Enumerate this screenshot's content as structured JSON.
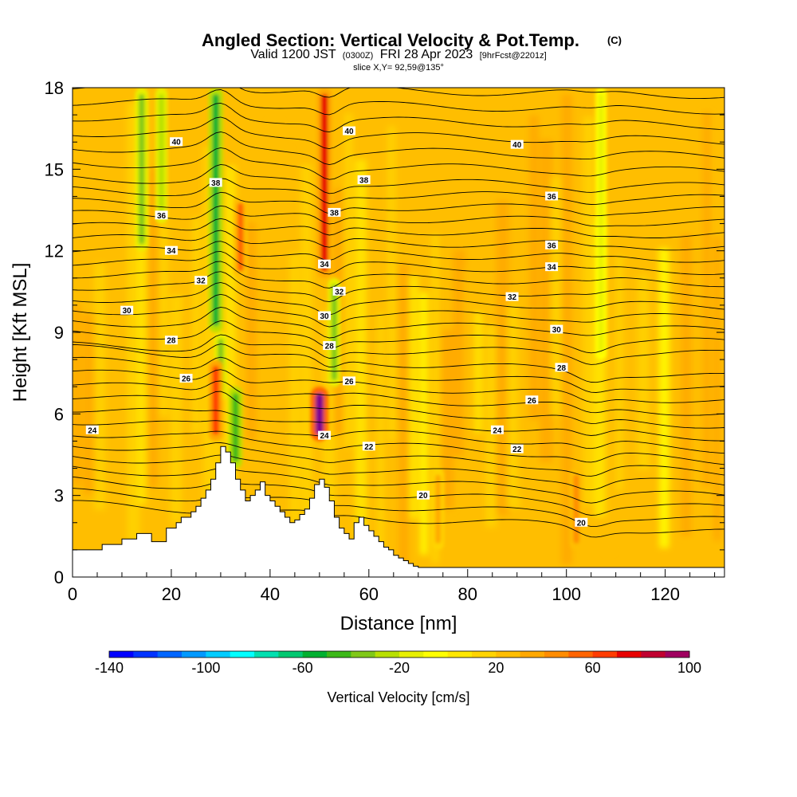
{
  "chart_data": {
    "type": "heatmap",
    "title": "Angled Section: Vertical Velocity & Pot.Temp.",
    "title_suffix": "(C)",
    "subtitle_parts": [
      "Valid 1200 JST",
      "(0300Z)",
      "FRI 28 Apr 2023",
      "[9hrFcst@2201z]"
    ],
    "slice_label": "slice X,Y= 92,59@135°",
    "xlabel": "Distance [nm]",
    "ylabel": "Height [Kft MSL]",
    "xlim": [
      0,
      132
    ],
    "ylim": [
      0,
      18
    ],
    "x_ticks": [
      0,
      20,
      40,
      60,
      80,
      100,
      120
    ],
    "y_ticks": [
      0,
      3,
      6,
      9,
      12,
      15,
      18
    ],
    "colorbar": {
      "label": "Vertical Velocity [cm/s]",
      "min": -140,
      "max": 100,
      "step": 10,
      "tick_values": [
        -140,
        -100,
        -60,
        -20,
        20,
        60,
        100
      ],
      "colors": [
        "#0000ff",
        "#0033ff",
        "#0066ff",
        "#0099ff",
        "#00ccff",
        "#00ffff",
        "#00e0b0",
        "#00c870",
        "#00b030",
        "#3cb818",
        "#80c818",
        "#b8e000",
        "#e8f000",
        "#ffff00",
        "#ffe800",
        "#ffd400",
        "#ffbe00",
        "#ffa800",
        "#ff8c00",
        "#ff6400",
        "#ff3c00",
        "#e80000",
        "#c00030",
        "#a00060",
        "#800090",
        "#6000b0"
      ]
    },
    "theta_contours": [
      {
        "value": 20,
        "labels": [
          [
            71,
            3.0
          ],
          [
            103,
            2.0
          ]
        ]
      },
      {
        "value": 22,
        "labels": [
          [
            60,
            4.8
          ],
          [
            90,
            4.7
          ]
        ]
      },
      {
        "value": 24,
        "labels": [
          [
            4,
            5.4
          ],
          [
            51,
            5.2
          ],
          [
            86,
            5.4
          ]
        ]
      },
      {
        "value": 26,
        "labels": [
          [
            23,
            7.3
          ],
          [
            56,
            7.2
          ],
          [
            93,
            6.5
          ]
        ]
      },
      {
        "value": 28,
        "labels": [
          [
            20,
            8.7
          ],
          [
            52,
            8.5
          ],
          [
            99,
            7.7
          ]
        ]
      },
      {
        "value": 30,
        "labels": [
          [
            11,
            9.8
          ],
          [
            51,
            9.6
          ],
          [
            98,
            9.1
          ]
        ]
      },
      {
        "value": 32,
        "labels": [
          [
            26,
            10.9
          ],
          [
            54,
            10.5
          ],
          [
            89,
            10.3
          ]
        ]
      },
      {
        "value": 34,
        "labels": [
          [
            20,
            12.0
          ],
          [
            51,
            11.5
          ],
          [
            97,
            11.4
          ]
        ]
      },
      {
        "value": 36,
        "labels": [
          [
            18,
            13.3
          ],
          [
            97,
            12.2
          ],
          [
            97,
            14.0
          ]
        ]
      },
      {
        "value": 38,
        "labels": [
          [
            29,
            14.5
          ],
          [
            53,
            13.4
          ],
          [
            59,
            14.6
          ]
        ]
      },
      {
        "value": 40,
        "labels": [
          [
            21,
            16.0
          ],
          [
            56,
            16.4
          ],
          [
            90,
            15.9
          ]
        ]
      }
    ],
    "terrain": {
      "x_nm": [
        0,
        5,
        6,
        9,
        10,
        12,
        13,
        15,
        16,
        18,
        19,
        21,
        22,
        24,
        25,
        26,
        27,
        28,
        29,
        30,
        31,
        32,
        33,
        34,
        35,
        36,
        37,
        38,
        39,
        40,
        41,
        42,
        43,
        44,
        45,
        46,
        47,
        48,
        49,
        50,
        51,
        52,
        53,
        54,
        55,
        56,
        57,
        58,
        59,
        60,
        61,
        62,
        63,
        64,
        65,
        66,
        67,
        68,
        69,
        70,
        71,
        72,
        132
      ],
      "height_kft": [
        1.0,
        1.0,
        1.2,
        1.2,
        1.4,
        1.4,
        1.6,
        1.6,
        1.3,
        1.3,
        1.8,
        2.0,
        2.2,
        2.4,
        2.6,
        2.9,
        3.2,
        3.6,
        4.2,
        4.8,
        4.6,
        4.2,
        3.6,
        3.2,
        2.8,
        3.0,
        3.2,
        3.5,
        3.0,
        2.8,
        2.6,
        2.4,
        2.2,
        2.0,
        2.1,
        2.3,
        2.5,
        2.9,
        3.4,
        3.6,
        3.3,
        2.8,
        2.2,
        1.8,
        1.6,
        1.4,
        2.0,
        2.2,
        1.9,
        1.7,
        1.5,
        1.3,
        1.1,
        1.0,
        0.8,
        0.7,
        0.6,
        0.5,
        0.4,
        0.35,
        0.35,
        0.35,
        0.35
      ]
    },
    "velocity_features": [
      {
        "x_nm": 14,
        "h_range": [
          12,
          18
        ],
        "w_cms": -40
      },
      {
        "x_nm": 18,
        "h_range": [
          13,
          18
        ],
        "w_cms": -30
      },
      {
        "x_nm": 29,
        "h_range": [
          9,
          18
        ],
        "w_cms": -60
      },
      {
        "x_nm": 30,
        "h_range": [
          6.5,
          9
        ],
        "w_cms": -40
      },
      {
        "x_nm": 33,
        "h_range": [
          4,
          7
        ],
        "w_cms": -50
      },
      {
        "x_nm": 29,
        "h_range": [
          5,
          8
        ],
        "w_cms": 60
      },
      {
        "x_nm": 34,
        "h_range": [
          11,
          14
        ],
        "w_cms": 50
      },
      {
        "x_nm": 51,
        "h_range": [
          11,
          18
        ],
        "w_cms": 70
      },
      {
        "x_nm": 50,
        "h_range": [
          5,
          7
        ],
        "w_cms": 100
      },
      {
        "x_nm": 53,
        "h_range": [
          7,
          11
        ],
        "w_cms": -40
      },
      {
        "x_nm": 107,
        "h_range": [
          8,
          18
        ],
        "w_cms": -20
      },
      {
        "x_nm": 102,
        "h_range": [
          1,
          4
        ],
        "w_cms": 40
      },
      {
        "x_nm": 74,
        "h_range": [
          1,
          4
        ],
        "w_cms": 30
      }
    ]
  }
}
